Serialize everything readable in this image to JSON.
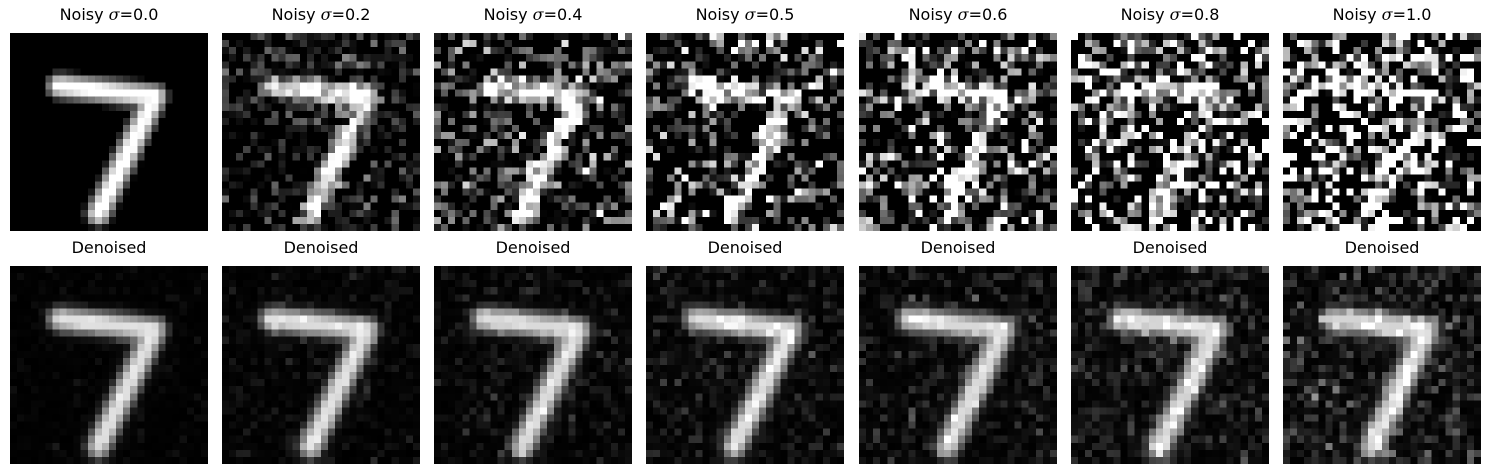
{
  "noisy_row": {
    "panels": [
      {
        "prefix": "Noisy ",
        "symbol": "σ",
        "suffix": "=0.0",
        "sigma": 0.0
      },
      {
        "prefix": "Noisy ",
        "symbol": "σ",
        "suffix": "=0.2",
        "sigma": 0.2
      },
      {
        "prefix": "Noisy ",
        "symbol": "σ",
        "suffix": "=0.4",
        "sigma": 0.4
      },
      {
        "prefix": "Noisy ",
        "symbol": "σ",
        "suffix": "=0.5",
        "sigma": 0.5
      },
      {
        "prefix": "Noisy ",
        "symbol": "σ",
        "suffix": "=0.6",
        "sigma": 0.6
      },
      {
        "prefix": "Noisy ",
        "symbol": "σ",
        "suffix": "=0.8",
        "sigma": 0.8
      },
      {
        "prefix": "Noisy ",
        "symbol": "σ",
        "suffix": "=1.0",
        "sigma": 1.0
      }
    ]
  },
  "denoised_row": {
    "panels": [
      {
        "label": "Denoised"
      },
      {
        "label": "Denoised"
      },
      {
        "label": "Denoised"
      },
      {
        "label": "Denoised"
      },
      {
        "label": "Denoised"
      },
      {
        "label": "Denoised"
      },
      {
        "label": "Denoised"
      }
    ]
  },
  "colormap": "gray",
  "background_color": "#000000"
}
